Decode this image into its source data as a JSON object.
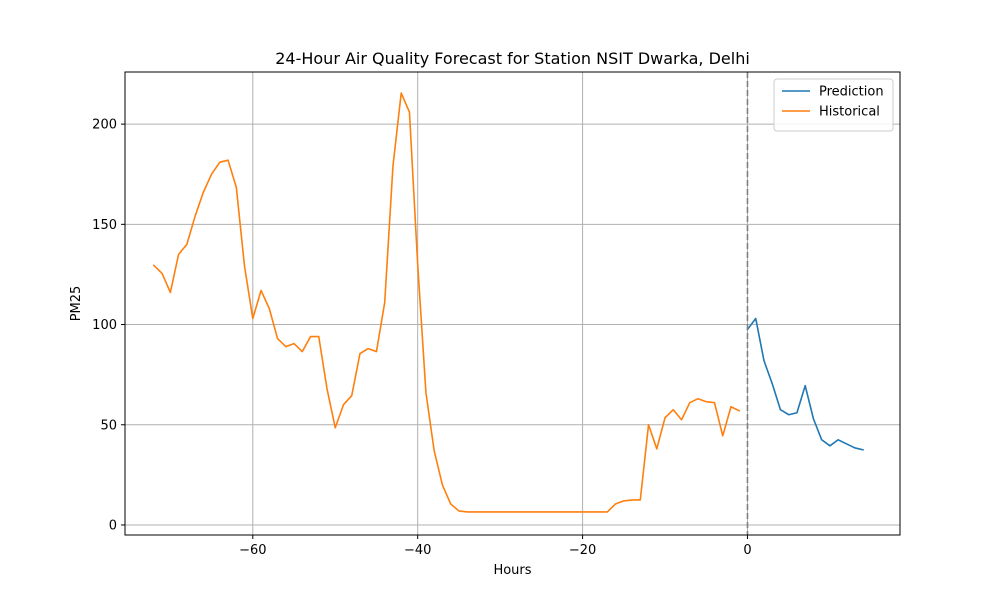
{
  "chart_data": {
    "type": "line",
    "title": "24-Hour Air Quality Forecast for Station NSIT Dwarka, Delhi",
    "xlabel": "Hours",
    "ylabel": "PM25",
    "xlim": [
      -75.5,
      18.5
    ],
    "ylim": [
      -5,
      226
    ],
    "xticks": [
      -60,
      -40,
      -20,
      0
    ],
    "xtick_labels": [
      "−60",
      "−40",
      "−20",
      "0"
    ],
    "yticks": [
      0,
      50,
      100,
      150,
      200
    ],
    "ytick_labels": [
      "0",
      "50",
      "100",
      "150",
      "200"
    ],
    "grid": true,
    "legend_position": "top-right",
    "vline": {
      "x": 0,
      "style": "dashed",
      "color": "#808080"
    },
    "series": [
      {
        "name": "Prediction",
        "color": "#1f77b4",
        "x": [
          0,
          1,
          2,
          3,
          4,
          5,
          6,
          7,
          8,
          9,
          10,
          11,
          12,
          13,
          14
        ],
        "values": [
          97.5,
          103,
          82,
          70.5,
          57.5,
          55,
          56,
          69.5,
          53,
          42.5,
          39.5,
          42.5,
          40.5,
          38.5,
          37.5
        ]
      },
      {
        "name": "Historical",
        "color": "#ff7f0e",
        "x": [
          -72,
          -71,
          -70,
          -69,
          -68,
          -67,
          -66,
          -65,
          -64,
          -63,
          -62,
          -61,
          -60,
          -59,
          -58,
          -57,
          -56,
          -55,
          -54,
          -53,
          -52,
          -51,
          -50,
          -49,
          -48,
          -47,
          -46,
          -45,
          -44,
          -43,
          -42,
          -41,
          -40,
          -39,
          -38,
          -37,
          -36,
          -35,
          -34,
          -33,
          -32,
          -31,
          -30,
          -29,
          -28,
          -27,
          -26,
          -25,
          -24,
          -23,
          -22,
          -21,
          -20,
          -19,
          -18,
          -17,
          -16,
          -15,
          -14,
          -13,
          -12,
          -11,
          -10,
          -9,
          -8,
          -7,
          -6,
          -5,
          -4,
          -3,
          -2,
          -1
        ],
        "values": [
          129.5,
          125.5,
          116,
          135,
          140,
          154,
          166,
          175,
          181,
          182,
          168.5,
          129,
          103,
          117,
          108,
          93,
          89,
          90.5,
          86.5,
          94,
          94,
          68,
          48.5,
          60,
          64.5,
          85.5,
          88,
          86.5,
          111,
          179,
          215.5,
          206,
          130,
          66,
          37,
          20,
          10.5,
          7,
          6.5,
          6.5,
          6.5,
          6.5,
          6.5,
          6.5,
          6.5,
          6.5,
          6.5,
          6.5,
          6.5,
          6.5,
          6.5,
          6.5,
          6.5,
          6.5,
          6.5,
          6.5,
          10.5,
          12,
          12.5,
          12.5,
          50,
          38,
          53.5,
          57.5,
          52.5,
          61,
          63,
          61.5,
          61,
          44.5,
          59,
          57
        ]
      }
    ]
  }
}
